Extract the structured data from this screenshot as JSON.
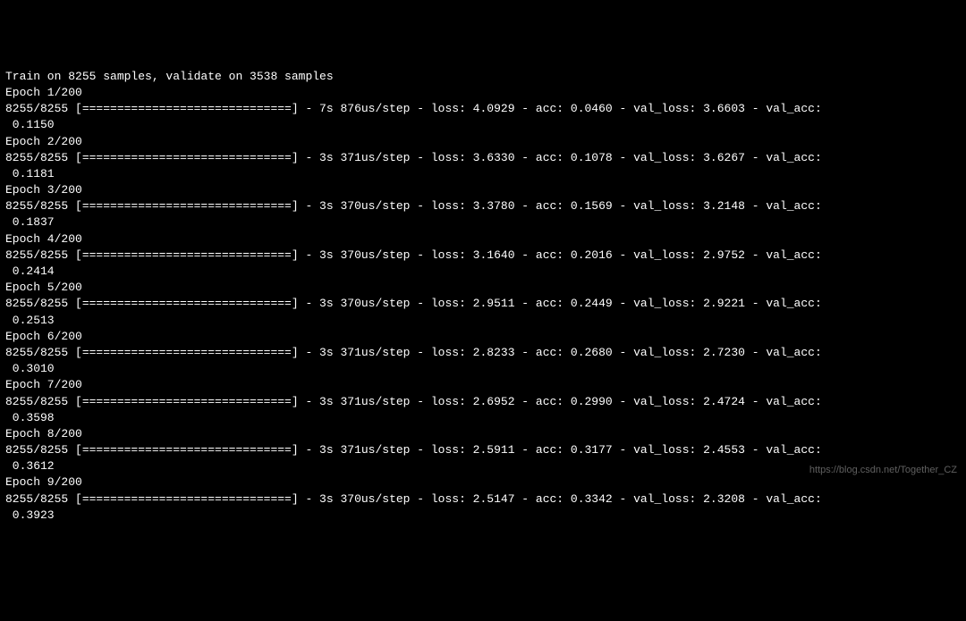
{
  "header": "Train on 8255 samples, validate on 3538 samples",
  "progress_bar": "[==============================]",
  "sample_progress": "8255/8255",
  "total_epochs": 200,
  "epochs": [
    {
      "epoch_num": 1,
      "time": "7s",
      "step_time": "876us/step",
      "loss": "4.0929",
      "acc": "0.0460",
      "val_loss": "3.6603",
      "val_acc": "0.1150"
    },
    {
      "epoch_num": 2,
      "time": "3s",
      "step_time": "371us/step",
      "loss": "3.6330",
      "acc": "0.1078",
      "val_loss": "3.6267",
      "val_acc": "0.1181"
    },
    {
      "epoch_num": 3,
      "time": "3s",
      "step_time": "370us/step",
      "loss": "3.3780",
      "acc": "0.1569",
      "val_loss": "3.2148",
      "val_acc": "0.1837"
    },
    {
      "epoch_num": 4,
      "time": "3s",
      "step_time": "370us/step",
      "loss": "3.1640",
      "acc": "0.2016",
      "val_loss": "2.9752",
      "val_acc": "0.2414"
    },
    {
      "epoch_num": 5,
      "time": "3s",
      "step_time": "370us/step",
      "loss": "2.9511",
      "acc": "0.2449",
      "val_loss": "2.9221",
      "val_acc": "0.2513"
    },
    {
      "epoch_num": 6,
      "time": "3s",
      "step_time": "371us/step",
      "loss": "2.8233",
      "acc": "0.2680",
      "val_loss": "2.7230",
      "val_acc": "0.3010"
    },
    {
      "epoch_num": 7,
      "time": "3s",
      "step_time": "371us/step",
      "loss": "2.6952",
      "acc": "0.2990",
      "val_loss": "2.4724",
      "val_acc": "0.3598"
    },
    {
      "epoch_num": 8,
      "time": "3s",
      "step_time": "371us/step",
      "loss": "2.5911",
      "acc": "0.3177",
      "val_loss": "2.4553",
      "val_acc": "0.3612"
    },
    {
      "epoch_num": 9,
      "time": "3s",
      "step_time": "370us/step",
      "loss": "2.5147",
      "acc": "0.3342",
      "val_loss": "2.3208",
      "val_acc": "0.3923"
    }
  ],
  "watermark": "https://blog.csdn.net/Together_CZ",
  "colors": {
    "background": "#000000",
    "text": "#ffffff",
    "watermark": "#888888"
  },
  "font": {
    "family": "Consolas, Courier New, monospace",
    "size": 13
  }
}
